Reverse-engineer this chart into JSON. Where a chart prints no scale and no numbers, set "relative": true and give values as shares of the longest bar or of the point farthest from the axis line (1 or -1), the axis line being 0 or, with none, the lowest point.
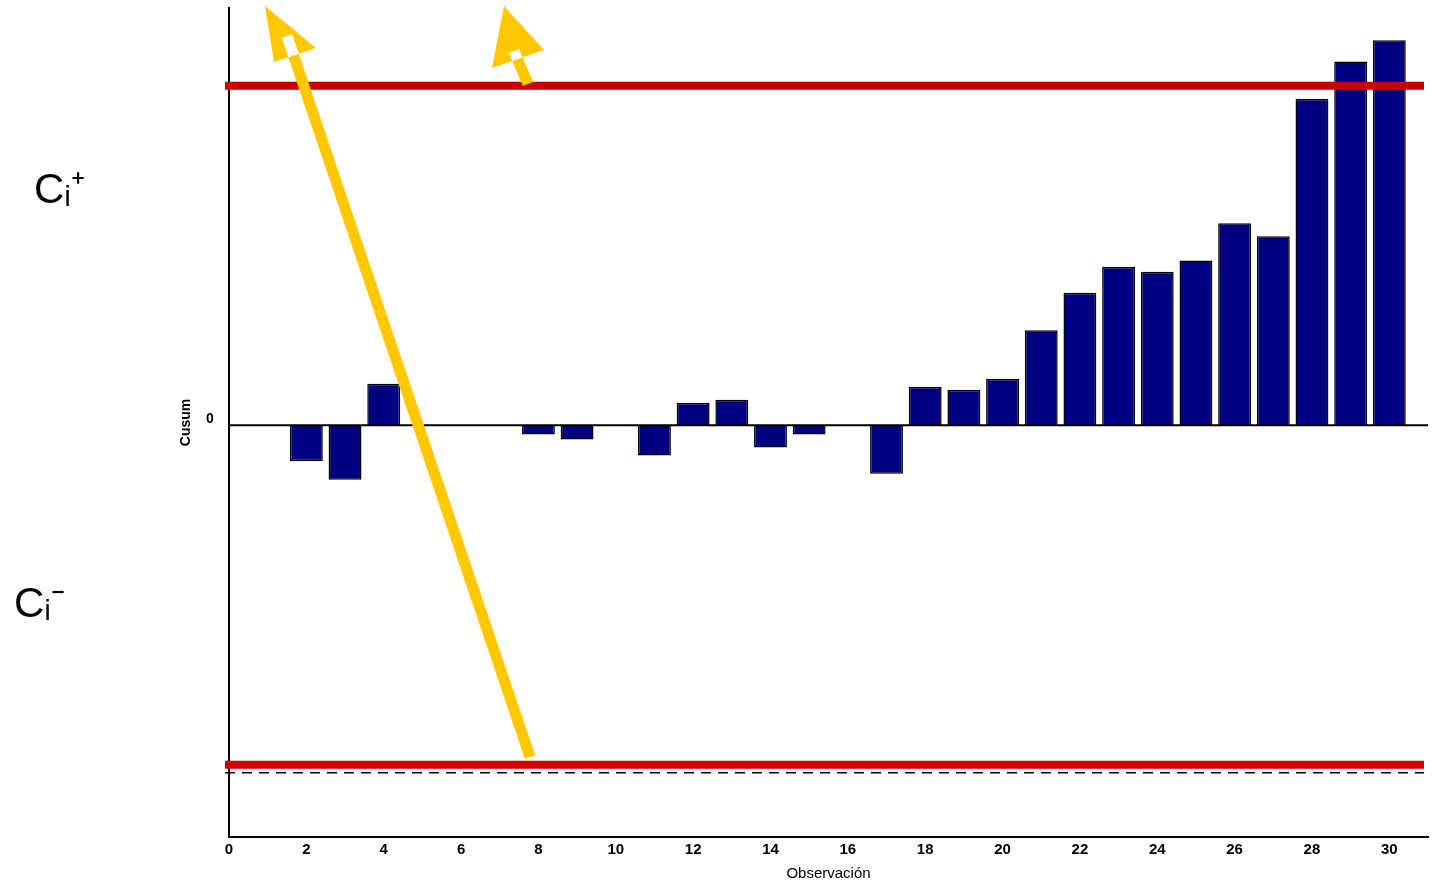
{
  "chart_data": {
    "type": "bar",
    "xlabel": "Observación",
    "ylabel": "Cusum",
    "relative": true,
    "x": [
      1,
      2,
      3,
      4,
      5,
      6,
      7,
      8,
      9,
      10,
      11,
      12,
      13,
      14,
      15,
      16,
      17,
      18,
      19,
      20,
      21,
      22,
      23,
      24,
      25,
      26,
      27,
      28,
      29,
      30
    ],
    "values": [
      0,
      -0.094,
      -0.142,
      0.108,
      0,
      0,
      0,
      -0.024,
      -0.037,
      0,
      -0.079,
      0.058,
      0.066,
      -0.058,
      -0.024,
      0,
      -0.126,
      0.1,
      0.092,
      0.121,
      0.247,
      0.344,
      0.412,
      0.399,
      0.428,
      0.525,
      0.491,
      0.848,
      0.945,
      1
    ],
    "color": "#000080",
    "xlim": [
      0,
      31
    ],
    "xticks": [
      0,
      2,
      4,
      6,
      8,
      10,
      12,
      14,
      16,
      18,
      20,
      22,
      24,
      26,
      28,
      30
    ],
    "ref_lines": [
      {
        "axis": "y",
        "value": 0.882,
        "color": "#cc0000",
        "line_style": "solid"
      },
      {
        "axis": "y",
        "value": -0.882,
        "color": "#cc0000",
        "line_style": "solid"
      },
      {
        "axis": "y",
        "value": -0.903,
        "color": "#000000",
        "line_style": "dashed"
      }
    ],
    "annotations": [
      "Cᵢ⁺",
      "Cᵢ⁻",
      "0"
    ],
    "grid": false,
    "legend": false
  }
}
